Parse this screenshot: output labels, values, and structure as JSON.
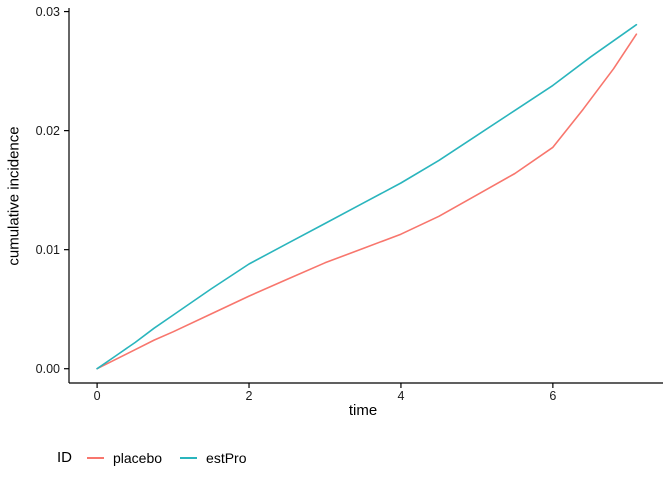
{
  "chart_data": {
    "type": "line",
    "title": "",
    "xlabel": "time",
    "ylabel": "cumulative incidence",
    "legend_title": "ID",
    "legend_position": "bottom-left",
    "grid": false,
    "axis_color": "#000000",
    "tick_label_color": "#1a1a1a",
    "xlim": [
      -0.37,
      7.45
    ],
    "ylim": [
      -0.0012,
      0.0303
    ],
    "xticks": [
      0,
      2,
      4,
      6
    ],
    "yticks": [
      0,
      0.01,
      0.02,
      0.03
    ],
    "ytick_labels": [
      "0.00",
      "0.01",
      "0.02",
      "0.03"
    ],
    "series": [
      {
        "name": "placebo",
        "color": "#F8766D",
        "x": [
          0,
          0.25,
          0.5,
          0.75,
          1,
          1.5,
          2,
          2.5,
          3,
          3.5,
          4,
          4.5,
          5,
          5.5,
          6,
          6.4,
          6.8,
          7.1
        ],
        "y": [
          0,
          0.0008,
          0.0016,
          0.0024,
          0.0031,
          0.0046,
          0.0061,
          0.0075,
          0.0089,
          0.0101,
          0.0113,
          0.0128,
          0.0146,
          0.0164,
          0.0186,
          0.0218,
          0.0252,
          0.0281
        ]
      },
      {
        "name": "estPro",
        "color": "#2AB5BD",
        "x": [
          0,
          0.25,
          0.5,
          0.75,
          1,
          1.5,
          2,
          2.5,
          3,
          3.5,
          4,
          4.5,
          5,
          5.5,
          6,
          6.5,
          7.1
        ],
        "y": [
          0,
          0.0011,
          0.0022,
          0.0034,
          0.0045,
          0.0067,
          0.0088,
          0.0105,
          0.0122,
          0.0139,
          0.0156,
          0.0175,
          0.0196,
          0.0217,
          0.0238,
          0.0262,
          0.0289
        ]
      }
    ]
  }
}
